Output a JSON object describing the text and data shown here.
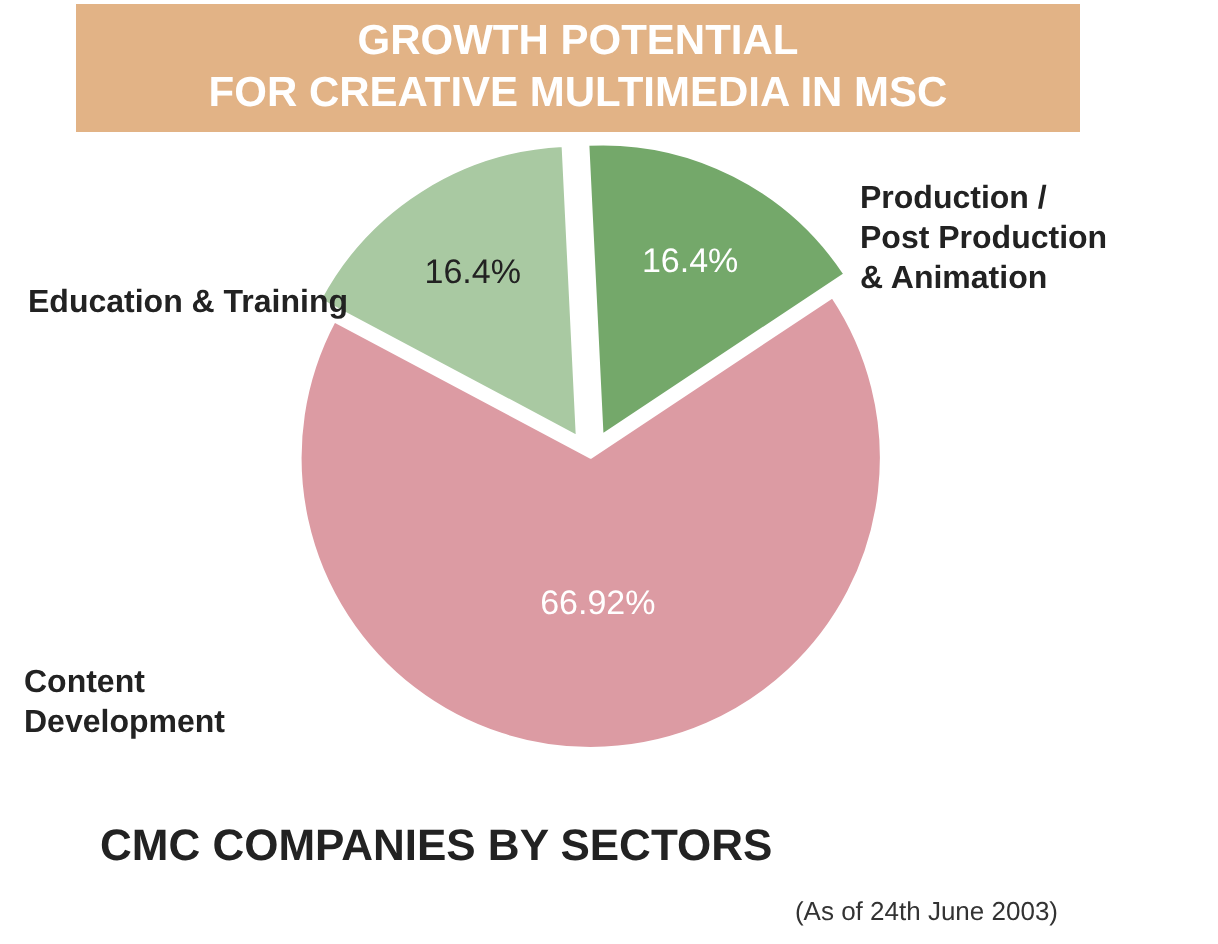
{
  "chart_data": {
    "type": "pie",
    "title": "GROWTH POTENTIAL\nFOR CREATIVE MULTIMEDIA IN MSC",
    "subtitle": "CMC COMPANIES BY SECTORS",
    "annotations": [
      "(As of 24th June 2003)"
    ],
    "categories": [
      "Education & Training",
      "Production /\nPost Production\n& Animation",
      "Content\nDevelopment"
    ],
    "values": [
      16.4,
      16.4,
      66.92
    ],
    "value_labels": [
      "16.4%",
      "16.4%",
      "66.92%"
    ],
    "colors": [
      "#a9c9a2",
      "#74a86a",
      "#dc9ba3"
    ],
    "legend": false
  }
}
